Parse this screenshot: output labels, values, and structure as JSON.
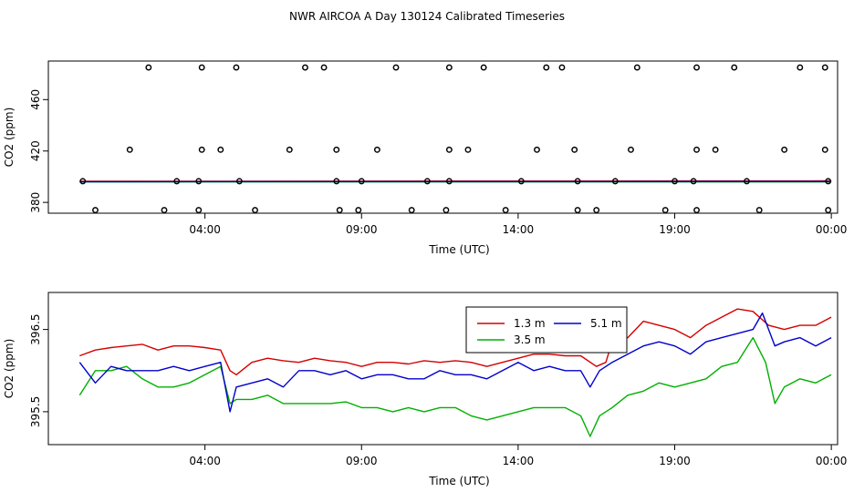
{
  "title": "NWR AIRCOA A  Day 130124  Calibrated Timeseries",
  "chart_data": [
    {
      "id": "top",
      "type": "scatter+line",
      "xlabel": "Time (UTC)",
      "ylabel": "CO2 (ppm)",
      "xlim": [
        -1,
        24.2
      ],
      "ylim": [
        371.6,
        490
      ],
      "xticks": [
        4,
        9,
        14,
        19,
        24
      ],
      "xtick_labels": [
        "04:00",
        "09:00",
        "14:00",
        "19:00",
        "00:00"
      ],
      "yticks": [
        380,
        420,
        460
      ],
      "ytick_labels": [
        "380",
        "420",
        "460"
      ],
      "calibration_points": {
        "y_levels": [
          374,
          396.5,
          421,
          485
        ],
        "x_by_level": [
          [
            0.5,
            2.7,
            3.8,
            5.6,
            8.3,
            8.9,
            10.6,
            11.7,
            13.6,
            15.9,
            16.5,
            18.7,
            19.7,
            21.7,
            23.9
          ],
          [
            0.1,
            3.1,
            3.8,
            5.1,
            8.2,
            9.0,
            11.1,
            11.8,
            14.1,
            15.9,
            17.1,
            19.0,
            19.6,
            21.3,
            23.9
          ],
          [
            1.6,
            3.9,
            4.5,
            6.7,
            8.2,
            9.5,
            11.8,
            12.4,
            14.6,
            15.8,
            17.6,
            19.7,
            20.3,
            22.5,
            23.8
          ],
          [
            2.2,
            3.9,
            5.0,
            7.2,
            7.8,
            10.1,
            11.8,
            12.9,
            14.9,
            15.4,
            17.8,
            19.7,
            20.9,
            23.0,
            23.8
          ]
        ]
      },
      "series": [
        {
          "name": "1.3 m",
          "color": "#d40000",
          "x": [
            0.0,
            24.0
          ],
          "values": [
            396.4,
            396.8
          ]
        },
        {
          "name": "3.5 m",
          "color": "#00b000",
          "x": [
            0.0,
            24.0
          ],
          "values": [
            395.9,
            395.9
          ]
        },
        {
          "name": "5.1 m",
          "color": "#0000cc",
          "x": [
            0.0,
            24.0
          ],
          "values": [
            396.1,
            396.3
          ]
        }
      ]
    },
    {
      "id": "bottom",
      "type": "line",
      "xlabel": "Time (UTC)",
      "ylabel": "CO2 (ppm)",
      "xlim": [
        -1,
        24.2
      ],
      "ylim": [
        395.1,
        396.95
      ],
      "xticks": [
        4,
        9,
        14,
        19,
        24
      ],
      "xtick_labels": [
        "04:00",
        "09:00",
        "14:00",
        "19:00",
        "00:00"
      ],
      "yticks": [
        395.5,
        396.5
      ],
      "ytick_labels": [
        "395.5",
        "396.5"
      ],
      "legend_position": "top-center",
      "series": [
        {
          "name": "1.3 m",
          "color": "#d40000",
          "x": [
            0.0,
            0.5,
            1.0,
            1.5,
            2.0,
            2.5,
            3.0,
            3.5,
            4.0,
            4.5,
            4.8,
            5.0,
            5.5,
            6.0,
            6.5,
            7.0,
            7.5,
            8.0,
            8.5,
            9.0,
            9.5,
            10.0,
            10.5,
            11.0,
            11.5,
            12.0,
            12.5,
            13.0,
            13.5,
            14.0,
            14.5,
            15.0,
            15.5,
            16.0,
            16.5,
            16.8,
            17.0,
            17.5,
            18.0,
            18.5,
            19.0,
            19.5,
            20.0,
            20.5,
            21.0,
            21.5,
            22.0,
            22.5,
            23.0,
            23.5,
            24.0
          ],
          "values": [
            396.18,
            396.25,
            396.28,
            396.3,
            396.32,
            396.25,
            396.3,
            396.3,
            396.28,
            396.25,
            396.0,
            395.95,
            396.1,
            396.15,
            396.12,
            396.1,
            396.15,
            396.12,
            396.1,
            396.05,
            396.1,
            396.1,
            396.08,
            396.12,
            396.1,
            396.12,
            396.1,
            396.05,
            396.1,
            396.15,
            396.2,
            396.2,
            396.18,
            396.18,
            396.05,
            396.1,
            396.35,
            396.4,
            396.6,
            396.55,
            396.5,
            396.4,
            396.55,
            396.65,
            396.75,
            396.72,
            396.55,
            396.5,
            396.55,
            396.55,
            396.65
          ]
        },
        {
          "name": "3.5 m",
          "color": "#00b000",
          "x": [
            0.0,
            0.5,
            1.0,
            1.5,
            2.0,
            2.5,
            3.0,
            3.5,
            4.0,
            4.5,
            4.8,
            5.0,
            5.5,
            6.0,
            6.5,
            7.0,
            7.5,
            8.0,
            8.5,
            9.0,
            9.5,
            10.0,
            10.5,
            11.0,
            11.5,
            12.0,
            12.5,
            13.0,
            13.5,
            14.0,
            14.5,
            15.0,
            15.5,
            16.0,
            16.3,
            16.6,
            17.0,
            17.5,
            18.0,
            18.5,
            19.0,
            19.5,
            20.0,
            20.5,
            21.0,
            21.5,
            21.9,
            22.2,
            22.5,
            23.0,
            23.5,
            24.0
          ],
          "values": [
            395.7,
            396.0,
            396.0,
            396.05,
            395.9,
            395.8,
            395.8,
            395.85,
            395.95,
            396.05,
            395.6,
            395.65,
            395.65,
            395.7,
            395.6,
            395.6,
            395.6,
            395.6,
            395.62,
            395.55,
            395.55,
            395.5,
            395.55,
            395.5,
            395.55,
            395.55,
            395.45,
            395.4,
            395.45,
            395.5,
            395.55,
            395.55,
            395.55,
            395.45,
            395.2,
            395.45,
            395.55,
            395.7,
            395.75,
            395.85,
            395.8,
            395.85,
            395.9,
            396.05,
            396.1,
            396.4,
            396.1,
            395.6,
            395.8,
            395.9,
            395.85,
            395.95
          ]
        },
        {
          "name": "5.1 m",
          "color": "#0000cc",
          "x": [
            0.0,
            0.5,
            1.0,
            1.5,
            2.0,
            2.5,
            3.0,
            3.5,
            4.0,
            4.5,
            4.8,
            5.0,
            5.5,
            6.0,
            6.5,
            7.0,
            7.5,
            8.0,
            8.5,
            9.0,
            9.5,
            10.0,
            10.5,
            11.0,
            11.5,
            12.0,
            12.5,
            13.0,
            13.5,
            14.0,
            14.5,
            15.0,
            15.5,
            16.0,
            16.3,
            16.6,
            17.0,
            17.5,
            18.0,
            18.5,
            19.0,
            19.5,
            20.0,
            20.5,
            21.0,
            21.5,
            21.8,
            22.2,
            22.5,
            23.0,
            23.5,
            24.0
          ],
          "values": [
            396.1,
            395.85,
            396.05,
            396.0,
            396.0,
            396.0,
            396.05,
            396.0,
            396.05,
            396.1,
            395.5,
            395.8,
            395.85,
            395.9,
            395.8,
            396.0,
            396.0,
            395.95,
            396.0,
            395.9,
            395.95,
            395.95,
            395.9,
            395.9,
            396.0,
            395.95,
            395.95,
            395.9,
            396.0,
            396.1,
            396.0,
            396.05,
            396.0,
            396.0,
            395.8,
            396.0,
            396.1,
            396.2,
            396.3,
            396.35,
            396.3,
            396.2,
            396.35,
            396.4,
            396.45,
            396.5,
            396.7,
            396.3,
            396.35,
            396.4,
            396.3,
            396.4
          ]
        }
      ]
    }
  ]
}
